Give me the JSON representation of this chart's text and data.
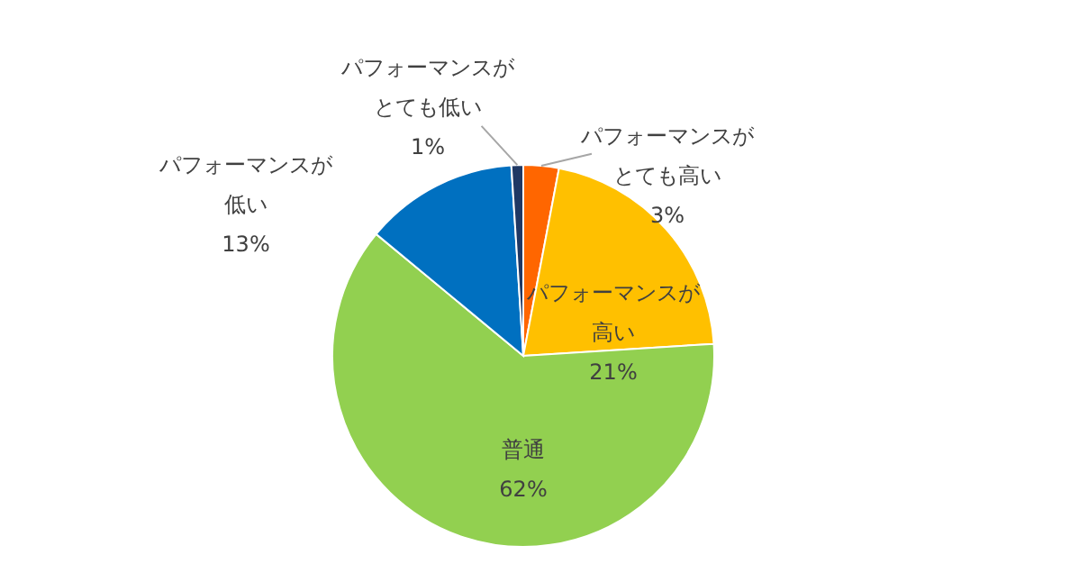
{
  "chart_data": {
    "type": "pie",
    "categories": [
      "パフォーマンスがとても高い",
      "パフォーマンスが高い",
      "普通",
      "パフォーマンスが低い",
      "パフォーマンスがとても低い"
    ],
    "values": [
      3,
      21,
      62,
      13,
      1
    ],
    "value_labels": [
      "3%",
      "21%",
      "62%",
      "13%",
      "1%"
    ],
    "colors": [
      "#ff6600",
      "#ffc000",
      "#92d050",
      "#0070c0",
      "#1f3864"
    ],
    "legend": false
  }
}
